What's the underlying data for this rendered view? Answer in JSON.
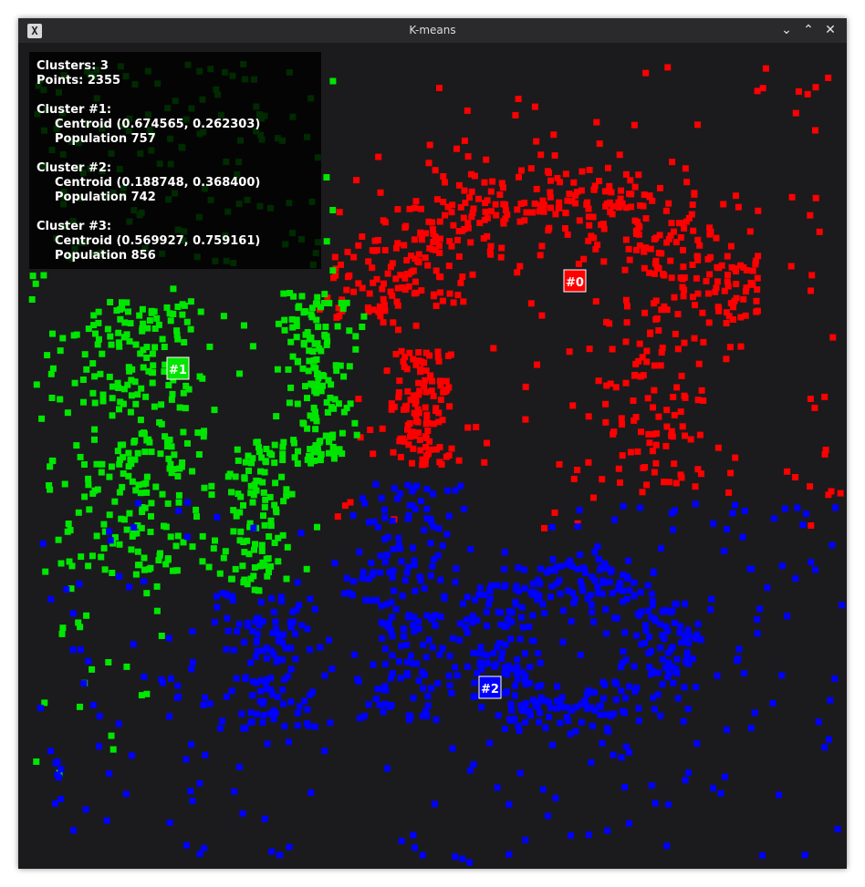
{
  "window": {
    "title": "K-means",
    "icon": "x-icon",
    "controls": [
      "minimize",
      "maximize",
      "close"
    ]
  },
  "info": {
    "clusters_line": "Clusters: 3",
    "points_line": "Points: 2355",
    "clusters": [
      {
        "header": "Cluster #1:",
        "centroid": "Centroid (0.674565, 0.262303)",
        "population": "Population 757"
      },
      {
        "header": "Cluster #2:",
        "centroid": "Centroid (0.188748, 0.368400)",
        "population": "Population 742"
      },
      {
        "header": "Cluster #3:",
        "centroid": "Centroid (0.569927, 0.759161)",
        "population": "Population 856"
      }
    ]
  },
  "centroid_labels": [
    "#0",
    "#1",
    "#2"
  ],
  "colors": {
    "background": "#1b1b1d",
    "red": "#ff0000",
    "green": "#00e600",
    "blue": "#0000ff",
    "titlebar": "#2a2a2d"
  },
  "chart_data": {
    "type": "scatter",
    "xlim": [
      0,
      1
    ],
    "ylim": [
      0,
      1
    ],
    "series": [
      {
        "centroid": [
          0.674565,
          0.262303
        ],
        "population": 757,
        "color": "#ff0000",
        "label": "#0"
      },
      {
        "centroid": [
          0.188748,
          0.3684
        ],
        "population": 742,
        "color": "#00e600",
        "label": "#1"
      },
      {
        "centroid": [
          0.569927,
          0.759161
        ],
        "population": 856,
        "color": "#0000ff",
        "label": "#2"
      }
    ],
    "total_points": 2355
  }
}
